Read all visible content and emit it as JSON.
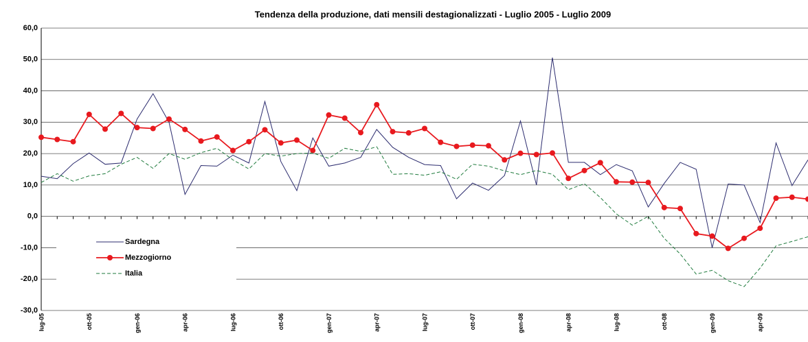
{
  "chart_data": {
    "type": "line",
    "title": "Tendenza della produzione, dati mensili destagionalizzati - Luglio 2005 - Luglio 2009",
    "categories": [
      "lug-05",
      null,
      null,
      "ott-05",
      null,
      null,
      "gen-06",
      null,
      null,
      "apr-06",
      null,
      null,
      "lug-06",
      null,
      null,
      "ott-06",
      null,
      null,
      "gen-07",
      null,
      null,
      "apr-07",
      null,
      null,
      "lug-07",
      null,
      null,
      "ott-07",
      null,
      null,
      "gen-08",
      null,
      null,
      "apr-08",
      null,
      null,
      "lug-08",
      null,
      null,
      "ott-08",
      null,
      null,
      "gen-09",
      null,
      null,
      "apr-09",
      null,
      null,
      null
    ],
    "series": [
      {
        "name": "Sardegna",
        "color": "#2b2b6e",
        "line_style": "solid",
        "marker": "none",
        "values": [
          12.8,
          12.0,
          16.8,
          20.2,
          16.6,
          17.0,
          31.0,
          39.1,
          30.0,
          7.0,
          16.2,
          16.0,
          19.5,
          17.0,
          36.6,
          17.5,
          8.2,
          25.0,
          16.0,
          17.0,
          18.8,
          27.7,
          22.0,
          18.8,
          16.5,
          16.2,
          5.6,
          10.6,
          8.3,
          13.0,
          30.4,
          10.0,
          50.6,
          17.2,
          17.2,
          13.3,
          16.5,
          14.5,
          3.0,
          10.5,
          17.2,
          15.0,
          -10.0,
          10.3,
          10.0,
          -2.0,
          23.4,
          9.8,
          18.0
        ]
      },
      {
        "name": "Mezzogiorno",
        "color": "#e8191e",
        "line_style": "solid",
        "marker": "circle",
        "values": [
          25.2,
          24.5,
          23.8,
          32.5,
          27.8,
          32.8,
          28.3,
          28.0,
          31.0,
          27.7,
          24.0,
          25.3,
          21.0,
          23.8,
          27.6,
          23.4,
          24.3,
          21.0,
          32.3,
          31.3,
          26.7,
          35.6,
          27.0,
          26.6,
          28.0,
          23.6,
          22.3,
          22.7,
          22.5,
          18.0,
          20.1,
          19.7,
          20.2,
          12.1,
          14.6,
          17.1,
          11.0,
          10.9,
          10.8,
          2.8,
          2.5,
          -5.5,
          -6.3,
          -10.2,
          -7.0,
          -3.8,
          5.8,
          6.1,
          5.5
        ]
      },
      {
        "name": "Italia",
        "color": "#1e7a3c",
        "line_style": "dashed",
        "marker": "none",
        "values": [
          10.8,
          13.6,
          11.2,
          12.9,
          13.6,
          16.6,
          18.8,
          15.3,
          20.0,
          18.2,
          20.3,
          21.7,
          18.0,
          15.1,
          20.0,
          19.2,
          20.0,
          20.2,
          18.5,
          21.7,
          20.7,
          22.2,
          13.4,
          13.6,
          13.1,
          14.2,
          11.8,
          16.6,
          16.0,
          14.5,
          13.3,
          14.6,
          13.4,
          8.5,
          10.4,
          6.0,
          0.8,
          -2.8,
          0.0,
          -7.0,
          -12.0,
          -18.4,
          -17.2,
          -20.5,
          -22.4,
          -16.5,
          -9.4,
          -8.0,
          -6.5
        ]
      }
    ],
    "ylim": [
      -30,
      60
    ],
    "yticks": [
      {
        "value": -30,
        "label": "-30,0"
      },
      {
        "value": -20,
        "label": "-20,0"
      },
      {
        "value": -10,
        "label": "-10,0"
      },
      {
        "value": 0,
        "label": "0,0"
      },
      {
        "value": 10,
        "label": "10,0"
      },
      {
        "value": 20,
        "label": "20,0"
      },
      {
        "value": 30,
        "label": "30,0"
      },
      {
        "value": 40,
        "label": "40,0"
      },
      {
        "value": 50,
        "label": "50,0"
      },
      {
        "value": 60,
        "label": "60,0"
      }
    ],
    "grid": true,
    "legend": "lower left"
  }
}
